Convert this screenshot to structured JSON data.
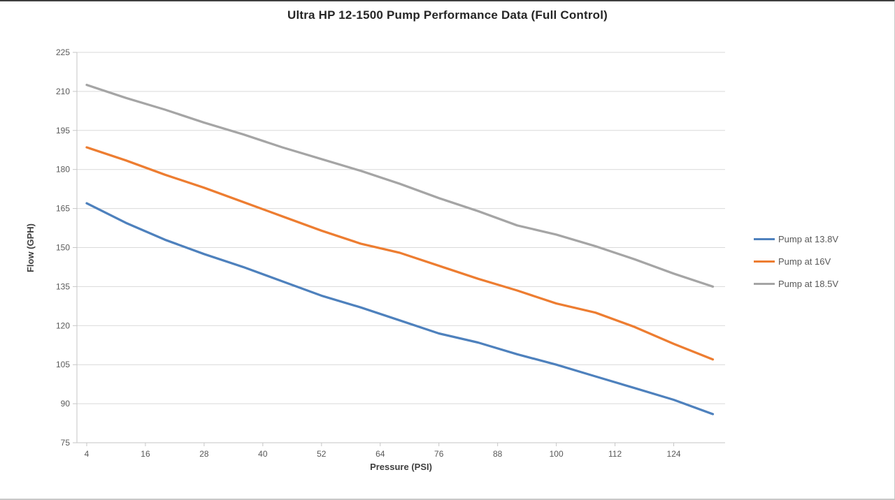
{
  "chart_data": {
    "type": "line",
    "title": "Ultra HP 12-1500 Pump Performance Data (Full Control)",
    "xlabel": "Pressure (PSI)",
    "ylabel": "Flow (GPH)",
    "x": [
      4,
      12,
      20,
      28,
      36,
      44,
      52,
      60,
      68,
      76,
      84,
      92,
      100,
      108,
      116,
      124,
      132
    ],
    "series": [
      {
        "name": "Pump at 13.8V",
        "color": "#4E81BD",
        "values": [
          167,
          159.5,
          153,
          147.5,
          142.5,
          137,
          131.5,
          127,
          122,
          117,
          113.5,
          109,
          105,
          100.5,
          96,
          91.5,
          86
        ]
      },
      {
        "name": "Pump at 16V",
        "color": "#ED7D31",
        "values": [
          188.5,
          183.5,
          178,
          173,
          167.5,
          162,
          156.5,
          151.5,
          148,
          143,
          138,
          133.5,
          128.5,
          125,
          119.5,
          113,
          107
        ]
      },
      {
        "name": "Pump at 18.5V",
        "color": "#A5A5A5",
        "values": [
          212.5,
          207.5,
          203,
          198,
          193.5,
          188.5,
          184,
          179.5,
          174.5,
          169,
          164,
          158.5,
          155,
          150.5,
          145.5,
          140,
          135
        ]
      }
    ],
    "xlim": [
      2,
      134.5
    ],
    "ylim": [
      75,
      225
    ],
    "x_ticks": [
      4,
      16,
      28,
      40,
      52,
      64,
      76,
      88,
      100,
      112,
      124
    ],
    "y_ticks": [
      75,
      90,
      105,
      120,
      135,
      150,
      165,
      180,
      195,
      210,
      225
    ],
    "grid": "horizontal",
    "legend_position": "right"
  },
  "colors": {
    "gridline": "#D9D9D9",
    "axis_line": "#C6C6C6",
    "tick_label": "#595959",
    "axis_title": "#404040",
    "title": "#262626",
    "background": "#FFFFFF"
  }
}
